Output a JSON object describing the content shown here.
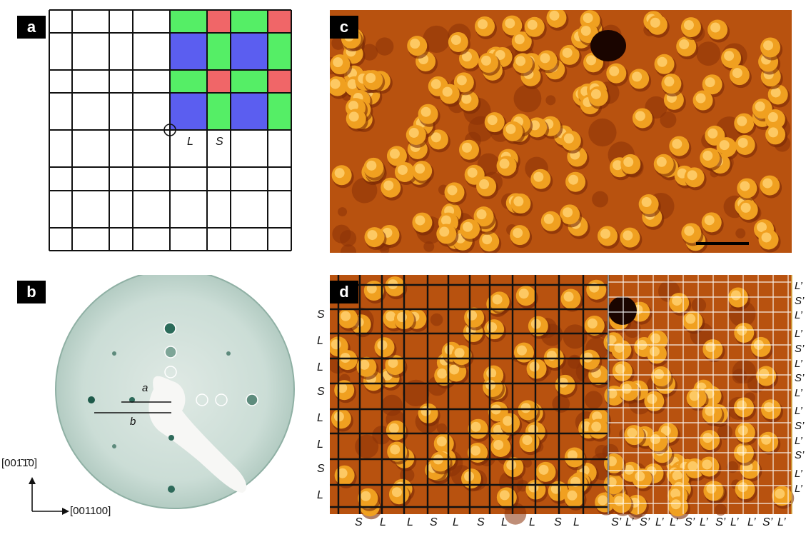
{
  "panels": {
    "a": {
      "label": "a",
      "cell_labels": [
        "L",
        "S"
      ],
      "colors": {
        "blue": "#5b5ef0",
        "green": "#55ee66",
        "red": "#f06668"
      }
    },
    "b": {
      "label": "b",
      "line_labels": [
        "a",
        "b"
      ],
      "axis_vertical": "[001̄1̄0]",
      "axis_horizontal": "[001100]"
    },
    "c": {
      "label": "c"
    },
    "d": {
      "label": "d",
      "left_labels": [
        "S",
        "L",
        "L",
        "S",
        "L",
        "L",
        "S",
        "L"
      ],
      "bottom_left_labels": [
        "S",
        "L",
        "L",
        "S",
        "L",
        "S",
        "L",
        "L",
        "S",
        "L"
      ],
      "bottom_right_labels": [
        "S’",
        "L’",
        "S’",
        "L’",
        "L’",
        "S’",
        "L’",
        "S’",
        "L’",
        "L’",
        "S’",
        "L’"
      ],
      "right_labels": [
        "L’",
        "S’",
        "L’",
        "L’",
        "S’",
        "L’",
        "S’",
        "L’",
        "L’",
        "S’",
        "L’",
        "S’",
        "L’",
        "L’"
      ]
    }
  }
}
